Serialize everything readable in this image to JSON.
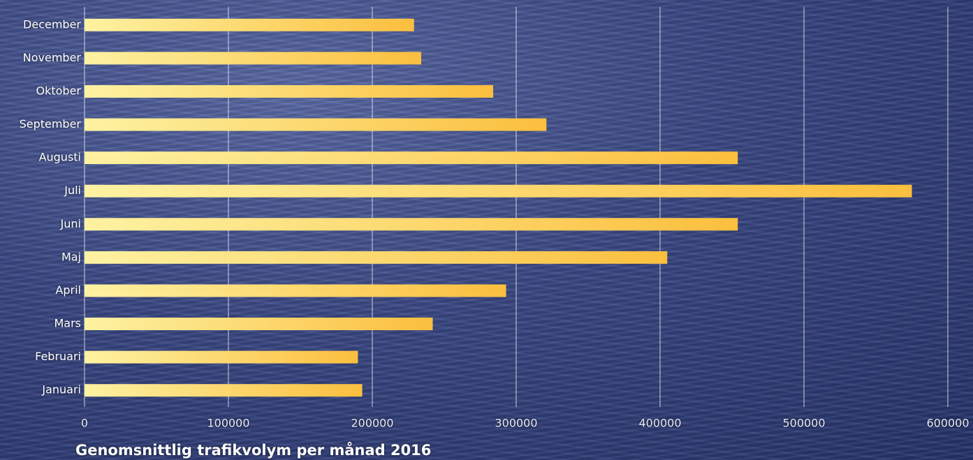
{
  "chart_data": {
    "type": "bar",
    "orientation": "horizontal",
    "title": "Genomsnittlig trafikvolym per månad 2016",
    "categories": [
      "Januari",
      "Februari",
      "Mars",
      "April",
      "Maj",
      "Juni",
      "Juli",
      "Augusti",
      "September",
      "Oktober",
      "November",
      "December"
    ],
    "values": [
      193000,
      190000,
      242000,
      293000,
      405000,
      454000,
      575000,
      454000,
      321000,
      284000,
      234000,
      229000
    ],
    "colors": [
      "#fdf2a2",
      "#fbbf3e"
    ],
    "xlim": [
      0,
      600000
    ],
    "xticks": [
      0,
      100000,
      200000,
      300000,
      400000,
      500000,
      600000
    ],
    "grid": true
  }
}
